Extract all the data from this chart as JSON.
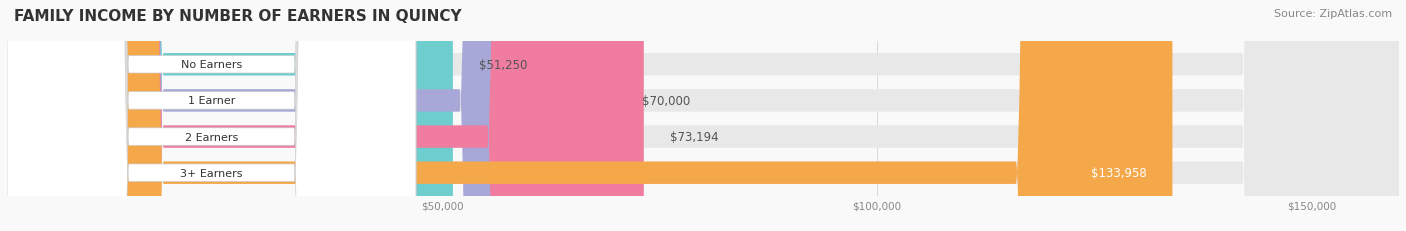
{
  "title": "FAMILY INCOME BY NUMBER OF EARNERS IN QUINCY",
  "source": "Source: ZipAtlas.com",
  "categories": [
    "No Earners",
    "1 Earner",
    "2 Earners",
    "3+ Earners"
  ],
  "values": [
    51250,
    70000,
    73194,
    133958
  ],
  "labels": [
    "$51,250",
    "$70,000",
    "$73,194",
    "$133,958"
  ],
  "bar_colors": [
    "#6ecece",
    "#a8a8d8",
    "#f07ca0",
    "#f5a84a"
  ],
  "bar_bg_color": "#ebebeb",
  "bar_label_colors": [
    "#555555",
    "#555555",
    "#555555",
    "#ffffff"
  ],
  "xmin": 0,
  "xmax": 160000,
  "xticks": [
    50000,
    100000,
    150000
  ],
  "xtick_labels": [
    "$50,000",
    "$100,000",
    "$150,000"
  ],
  "title_color": "#333333",
  "source_color": "#888888",
  "background_color": "#f9f9f9",
  "title_fontsize": 11,
  "source_fontsize": 8,
  "bar_height": 0.62,
  "label_fontsize": 8.5
}
